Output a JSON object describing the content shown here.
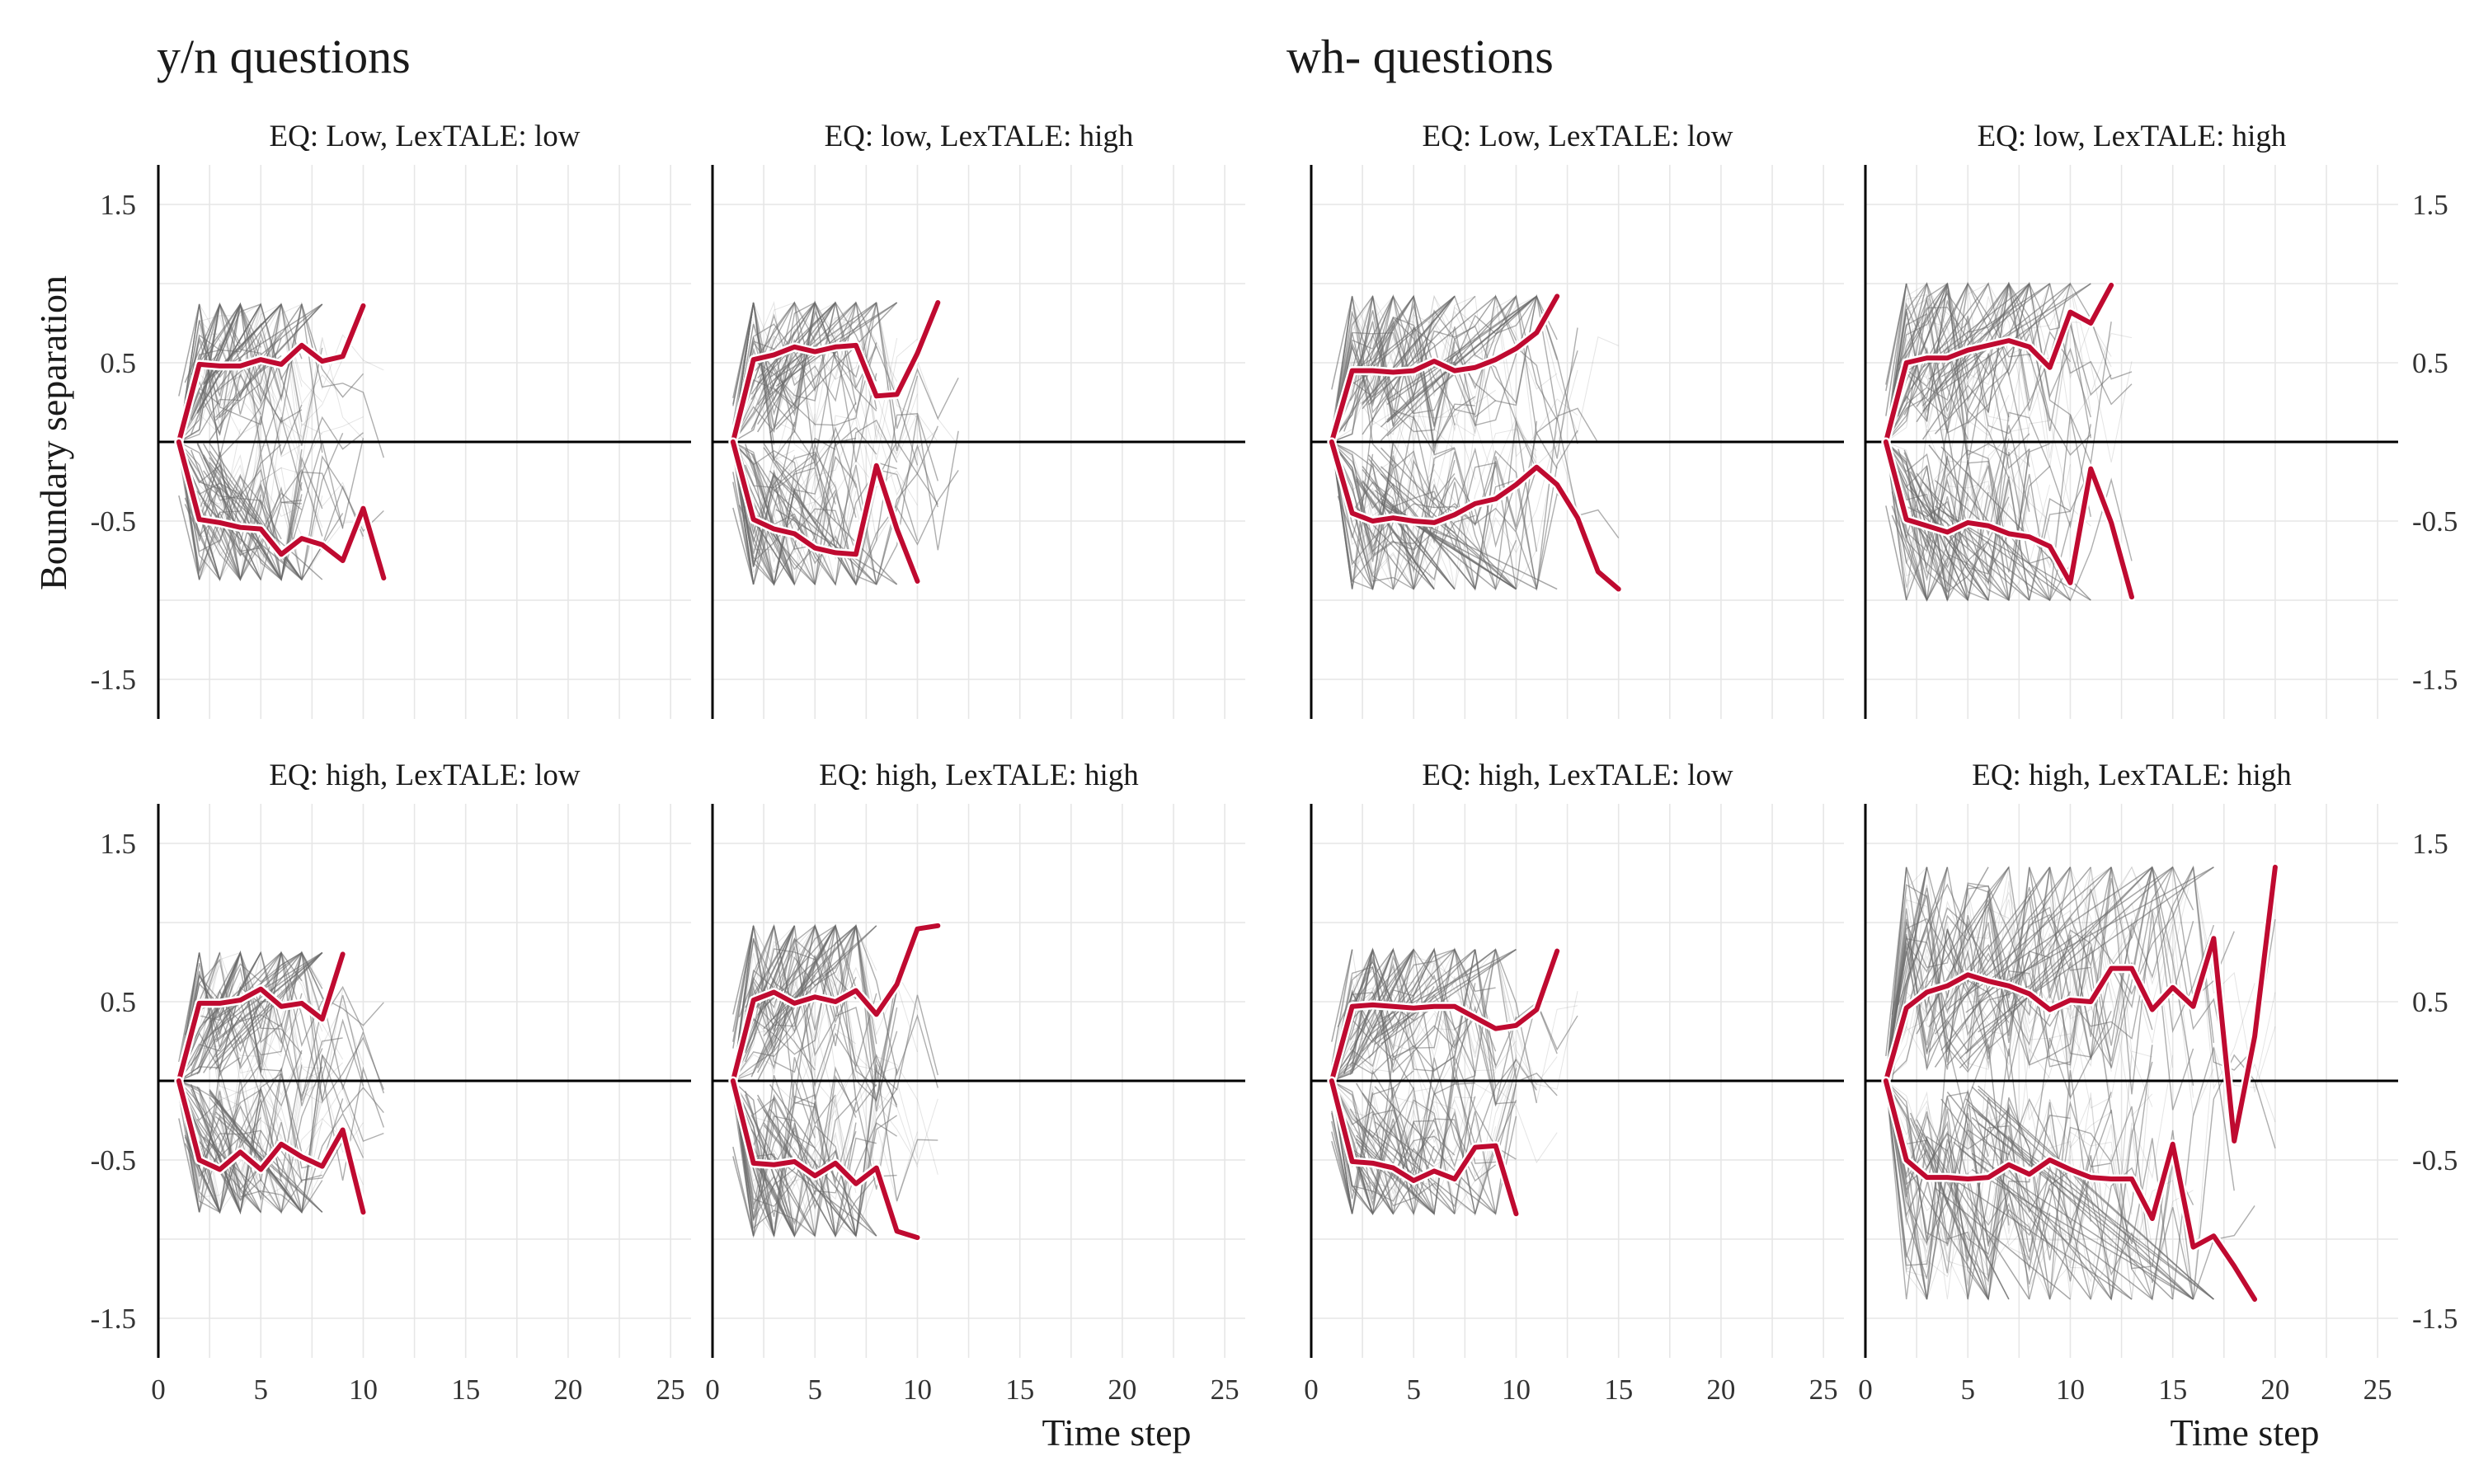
{
  "panel_groups": [
    {
      "title": "y/n questions"
    },
    {
      "title": "wh- questions"
    }
  ],
  "x_axis_title": "Time step",
  "y_axis_title": "Boundary separation",
  "colors": {
    "mean": "#BF0A30",
    "trace": "#6b6b6b",
    "grid": "#e6e6e6",
    "axis": "#000000"
  },
  "chart_data": [
    {
      "type": "line",
      "group": "y/n questions",
      "panel": "EQ: Low, LexTALE: low",
      "xlim": [
        0,
        26
      ],
      "ylim": [
        -1.75,
        1.75
      ],
      "x_ticks": [
        0,
        5,
        10,
        15,
        20,
        25
      ],
      "y_ticks": [
        -1.5,
        -0.5,
        0.5,
        1.5
      ],
      "trace_band": [
        0.87,
        0.87
      ],
      "trace_max_step": 8,
      "series": [
        {
          "x": [
            1,
            2,
            3,
            4,
            5,
            6,
            7,
            8,
            9,
            10
          ],
          "y": [
            0,
            0.49,
            0.48,
            0.48,
            0.52,
            0.49,
            0.61,
            0.51,
            0.54,
            0.86
          ]
        },
        {
          "x": [
            1,
            2,
            3,
            4,
            5,
            6,
            7,
            8,
            9,
            10,
            11
          ],
          "y": [
            0,
            -0.49,
            -0.51,
            -0.54,
            -0.55,
            -0.71,
            -0.61,
            -0.65,
            -0.75,
            -0.42,
            -0.86
          ]
        }
      ]
    },
    {
      "type": "line",
      "group": "y/n questions",
      "panel": "EQ: low, LexTALE: high",
      "xlim": [
        0,
        26
      ],
      "ylim": [
        -1.75,
        1.75
      ],
      "x_ticks": [
        0,
        5,
        10,
        15,
        20,
        25
      ],
      "y_ticks": [
        -1.5,
        -0.5,
        0.5,
        1.5
      ],
      "trace_band": [
        0.88,
        0.9
      ],
      "trace_max_step": 9,
      "series": [
        {
          "x": [
            1,
            2,
            3,
            4,
            5,
            6,
            7,
            8,
            9,
            10,
            11
          ],
          "y": [
            0,
            0.52,
            0.55,
            0.6,
            0.57,
            0.6,
            0.61,
            0.29,
            0.3,
            0.56,
            0.88
          ]
        },
        {
          "x": [
            1,
            2,
            3,
            4,
            5,
            6,
            7,
            8,
            9,
            10
          ],
          "y": [
            0,
            -0.49,
            -0.55,
            -0.58,
            -0.67,
            -0.7,
            -0.71,
            -0.15,
            -0.55,
            -0.88
          ]
        }
      ]
    },
    {
      "type": "line",
      "group": "wh- questions",
      "panel": "EQ: Low, LexTALE: low",
      "xlim": [
        0,
        26
      ],
      "ylim": [
        -1.75,
        1.75
      ],
      "x_ticks": [
        0,
        5,
        10,
        15,
        20,
        25
      ],
      "y_ticks": [
        -1.5,
        -0.5,
        0.5,
        1.5
      ],
      "trace_band": [
        0.92,
        0.93
      ],
      "trace_max_step": 12,
      "series": [
        {
          "x": [
            1,
            2,
            3,
            4,
            5,
            6,
            7,
            8,
            9,
            10,
            11,
            12
          ],
          "y": [
            0,
            0.45,
            0.45,
            0.44,
            0.45,
            0.51,
            0.45,
            0.47,
            0.52,
            0.59,
            0.69,
            0.92
          ]
        },
        {
          "x": [
            1,
            2,
            3,
            4,
            5,
            6,
            7,
            8,
            9,
            10,
            11,
            12,
            13,
            14,
            15
          ],
          "y": [
            0,
            -0.45,
            -0.5,
            -0.48,
            -0.5,
            -0.51,
            -0.46,
            -0.39,
            -0.36,
            -0.27,
            -0.16,
            -0.27,
            -0.48,
            -0.82,
            -0.93
          ]
        }
      ]
    },
    {
      "type": "line",
      "group": "wh- questions",
      "panel": "EQ: low, LexTALE: high",
      "xlim": [
        0,
        26
      ],
      "ylim": [
        -1.75,
        1.75
      ],
      "x_ticks": [
        0,
        5,
        10,
        15,
        20,
        25
      ],
      "y_ticks": [
        -1.5,
        -0.5,
        0.5,
        1.5
      ],
      "trace_band": [
        1.0,
        1.0
      ],
      "trace_max_step": 11,
      "series": [
        {
          "x": [
            1,
            2,
            3,
            4,
            5,
            6,
            7,
            8,
            9,
            10,
            11,
            12
          ],
          "y": [
            0,
            0.5,
            0.53,
            0.53,
            0.58,
            0.61,
            0.64,
            0.6,
            0.47,
            0.82,
            0.75,
            0.99
          ]
        },
        {
          "x": [
            1,
            2,
            3,
            4,
            5,
            6,
            7,
            8,
            9,
            10,
            11,
            12,
            13
          ],
          "y": [
            0,
            -0.49,
            -0.53,
            -0.57,
            -0.51,
            -0.53,
            -0.58,
            -0.6,
            -0.66,
            -0.89,
            -0.17,
            -0.51,
            -0.98
          ]
        }
      ]
    },
    {
      "type": "line",
      "group": "y/n questions",
      "panel": "EQ: high, LexTALE: low",
      "xlim": [
        0,
        26
      ],
      "ylim": [
        -1.75,
        1.75
      ],
      "x_ticks": [
        0,
        5,
        10,
        15,
        20,
        25
      ],
      "y_ticks": [
        -1.5,
        -0.5,
        0.5,
        1.5
      ],
      "trace_band": [
        0.81,
        0.83
      ],
      "trace_max_step": 8,
      "series": [
        {
          "x": [
            1,
            2,
            3,
            4,
            5,
            6,
            7,
            8,
            9
          ],
          "y": [
            0,
            0.49,
            0.49,
            0.51,
            0.58,
            0.47,
            0.49,
            0.39,
            0.8
          ]
        },
        {
          "x": [
            1,
            2,
            3,
            4,
            5,
            6,
            7,
            8,
            9,
            10
          ],
          "y": [
            0,
            -0.5,
            -0.56,
            -0.45,
            -0.56,
            -0.4,
            -0.48,
            -0.54,
            -0.31,
            -0.83
          ]
        }
      ]
    },
    {
      "type": "line",
      "group": "y/n questions",
      "panel": "EQ: high, LexTALE: high",
      "xlim": [
        0,
        26
      ],
      "ylim": [
        -1.75,
        1.75
      ],
      "x_ticks": [
        0,
        5,
        10,
        15,
        20,
        25
      ],
      "y_ticks": [
        -1.5,
        -0.5,
        0.5,
        1.5
      ],
      "trace_band": [
        0.98,
        0.98
      ],
      "trace_max_step": 8,
      "series": [
        {
          "x": [
            1,
            2,
            3,
            4,
            5,
            6,
            7,
            8,
            9,
            10,
            11
          ],
          "y": [
            0,
            0.51,
            0.56,
            0.49,
            0.53,
            0.5,
            0.57,
            0.42,
            0.61,
            0.96,
            0.98
          ]
        },
        {
          "x": [
            1,
            2,
            3,
            4,
            5,
            6,
            7,
            8,
            9,
            10
          ],
          "y": [
            0,
            -0.52,
            -0.53,
            -0.51,
            -0.6,
            -0.52,
            -0.65,
            -0.55,
            -0.95,
            -0.99
          ]
        }
      ]
    },
    {
      "type": "line",
      "group": "wh- questions",
      "panel": "EQ: high, LexTALE: low",
      "xlim": [
        0,
        26
      ],
      "ylim": [
        -1.75,
        1.75
      ],
      "x_ticks": [
        0,
        5,
        10,
        15,
        20,
        25
      ],
      "y_ticks": [
        -1.5,
        -0.5,
        0.5,
        1.5
      ],
      "trace_band": [
        0.83,
        0.84
      ],
      "trace_max_step": 10,
      "series": [
        {
          "x": [
            1,
            2,
            3,
            4,
            5,
            6,
            7,
            8,
            9,
            10,
            11,
            12
          ],
          "y": [
            0,
            0.47,
            0.48,
            0.47,
            0.46,
            0.47,
            0.47,
            0.4,
            0.33,
            0.35,
            0.45,
            0.82
          ]
        },
        {
          "x": [
            1,
            2,
            3,
            4,
            5,
            6,
            7,
            8,
            9,
            10
          ],
          "y": [
            0,
            -0.51,
            -0.52,
            -0.55,
            -0.63,
            -0.57,
            -0.62,
            -0.42,
            -0.41,
            -0.84
          ]
        }
      ]
    },
    {
      "type": "line",
      "group": "wh- questions",
      "panel": "EQ: high, LexTALE: high",
      "xlim": [
        0,
        26
      ],
      "ylim": [
        -1.75,
        1.75
      ],
      "x_ticks": [
        0,
        5,
        10,
        15,
        20,
        25
      ],
      "y_ticks": [
        -1.5,
        -0.5,
        0.5,
        1.5
      ],
      "trace_band": [
        1.35,
        1.38
      ],
      "trace_max_step": 17,
      "series": [
        {
          "x": [
            1,
            2,
            3,
            4,
            5,
            6,
            7,
            8,
            9,
            10,
            11,
            12,
            13,
            14,
            15,
            16,
            17,
            18,
            19,
            20
          ],
          "y": [
            0,
            0.46,
            0.56,
            0.6,
            0.67,
            0.63,
            0.6,
            0.55,
            0.45,
            0.51,
            0.5,
            0.71,
            0.71,
            0.45,
            0.59,
            0.47,
            0.9,
            -0.38,
            0.28,
            1.35
          ]
        },
        {
          "x": [
            1,
            2,
            3,
            4,
            5,
            6,
            7,
            8,
            9,
            10,
            11,
            12,
            13,
            14,
            15,
            16,
            17,
            18,
            19
          ],
          "y": [
            0,
            -0.5,
            -0.61,
            -0.61,
            -0.62,
            -0.61,
            -0.53,
            -0.59,
            -0.5,
            -0.56,
            -0.61,
            -0.62,
            -0.62,
            -0.87,
            -0.4,
            -1.05,
            -0.98,
            -1.17,
            -1.38
          ]
        }
      ]
    }
  ]
}
